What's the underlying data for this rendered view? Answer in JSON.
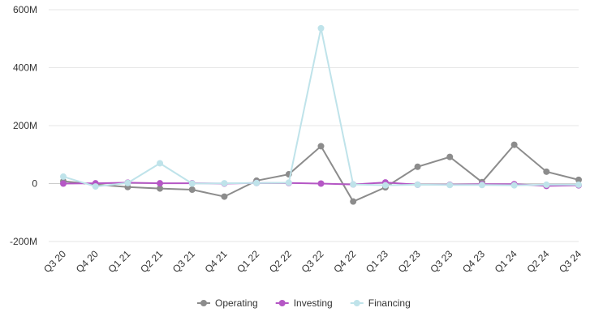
{
  "chart_data": {
    "type": "line",
    "categories": [
      "Q3 20",
      "Q4 20",
      "Q1 21",
      "Q2 21",
      "Q3 21",
      "Q4 21",
      "Q1 22",
      "Q2 22",
      "Q3 22",
      "Q4 22",
      "Q1 23",
      "Q2 23",
      "Q3 23",
      "Q4 23",
      "Q1 24",
      "Q2 24",
      "Q3 24"
    ],
    "y_ticks": [
      -200,
      0,
      200,
      400,
      600
    ],
    "y_tick_labels": [
      "-200M",
      "0",
      "200M",
      "400M",
      "600M"
    ],
    "ylim": [
      -200,
      600
    ],
    "grid": true,
    "legend_position": "bottom",
    "series": [
      {
        "name": "Operating",
        "color": "#8c8c8c",
        "values": [
          8,
          -3,
          -12,
          -17,
          -21,
          -45,
          10,
          32,
          129,
          -62,
          -13,
          58,
          92,
          5,
          134,
          41,
          13
        ]
      },
      {
        "name": "Investing",
        "color": "#b557c5",
        "values": [
          0,
          1,
          3,
          1,
          1,
          0,
          2,
          2,
          0,
          -3,
          4,
          -4,
          -4,
          -2,
          -2,
          -8,
          -6
        ]
      },
      {
        "name": "Financing",
        "color": "#bfe3ea",
        "values": [
          24,
          -10,
          2,
          70,
          0,
          1,
          2,
          3,
          536,
          -3,
          -6,
          -4,
          -5,
          -5,
          -6,
          -4,
          -4
        ]
      }
    ]
  }
}
